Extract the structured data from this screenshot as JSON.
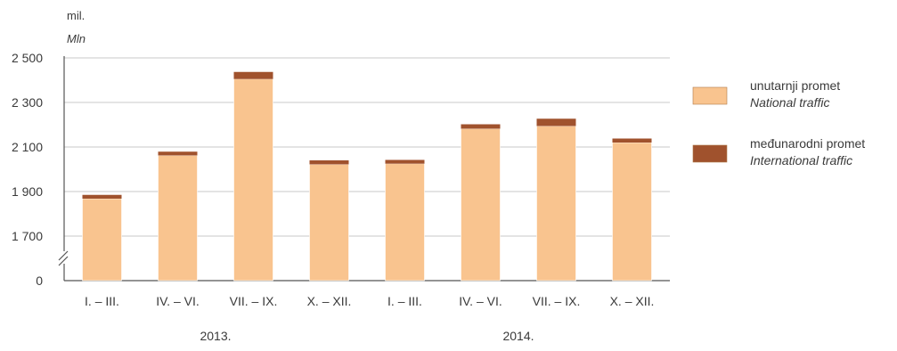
{
  "chart_data": {
    "type": "bar",
    "stacked": true,
    "unit_label": "mil.",
    "unit_label_en": "Mln",
    "categories": [
      "I. – III.",
      "IV. – VI.",
      "VII. – IX.",
      "X. – XII.",
      "I. – III.",
      "IV. – VI.",
      "VII. – IX.",
      "X. – XII."
    ],
    "groups": [
      {
        "label": "2013.",
        "from": 0,
        "to": 3
      },
      {
        "label": "2014.",
        "from": 4,
        "to": 7
      }
    ],
    "series": [
      {
        "name": "unutarnji promet",
        "name_en": "National traffic",
        "color": "#f9c48f",
        "values": [
          1868,
          2062,
          2405,
          2022,
          2025,
          2182,
          2194,
          2120
        ]
      },
      {
        "name": "međunarodni promet",
        "name_en": "International traffic",
        "color": "#a0522d",
        "values": [
          17,
          17,
          32,
          18,
          17,
          20,
          33,
          18
        ]
      }
    ],
    "y_ticks": [
      {
        "label": "2 500",
        "value": 2500
      },
      {
        "label": "2 300",
        "value": 2300
      },
      {
        "label": "2 100",
        "value": 2100
      },
      {
        "label": "1 900",
        "value": 1900
      },
      {
        "label": "1 700",
        "value": 1700
      },
      {
        "label": "0",
        "value": 0
      }
    ],
    "ylim": [
      1700,
      2500
    ],
    "axis_break": true,
    "grid": true,
    "legend_position": "right"
  }
}
